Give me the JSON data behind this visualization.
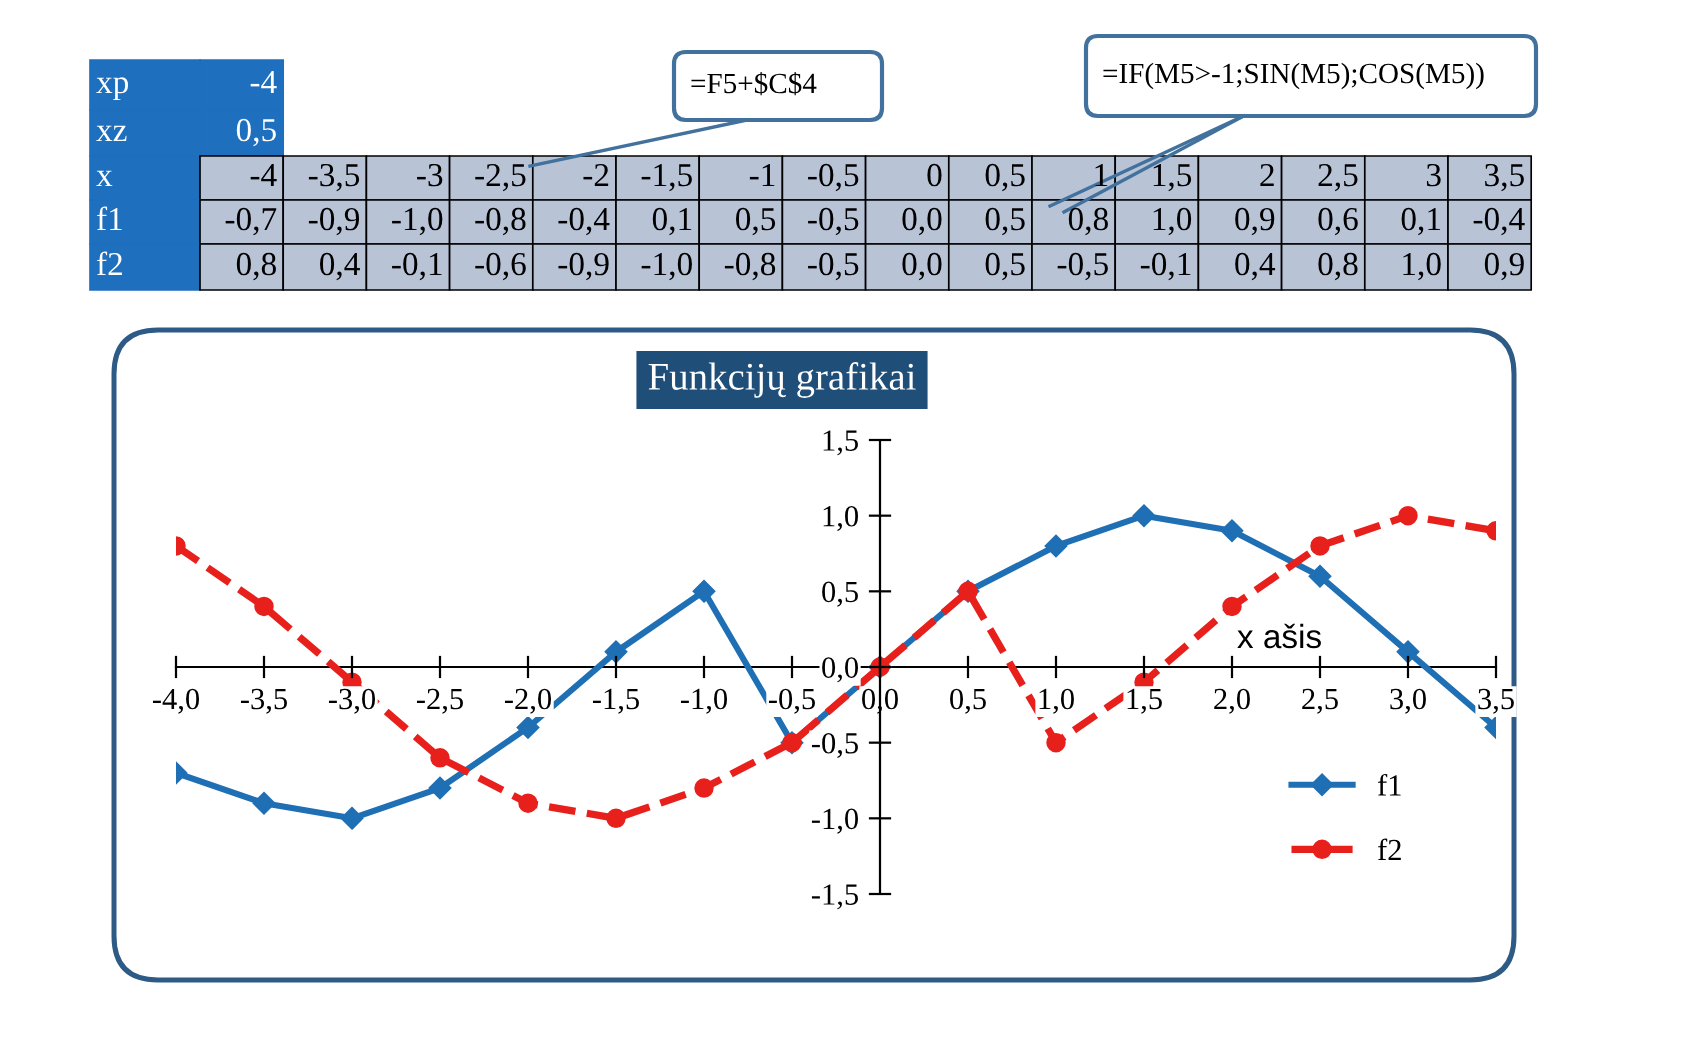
{
  "chart_data": {
    "type": "line",
    "title": "Funkcijų grafikai",
    "xlabel": "x ašis",
    "annotations": [
      "xp",
      "-4",
      "xz",
      "0,5",
      "x",
      "=F5+$C$4",
      "=IF(M5>-1;SIN(M5);COS(M5))",
      "-4",
      "-3,5",
      "-3",
      "-2,5",
      "-2",
      "-1,5",
      "-1",
      "-0,5",
      "0",
      "0,5",
      "1",
      "1,5",
      "2",
      "2,5",
      "3",
      "3,5",
      "f1",
      "-0,7",
      "-0,9",
      "-1,0",
      "-0,8",
      "-0,4",
      "0,1",
      "0,5",
      "-0,5",
      "0,0",
      "0,5",
      "0,8",
      "1,0",
      "0,9",
      "0,6",
      "0,1",
      "-0,4",
      "f2",
      "0,8",
      "0,4",
      "-0,1",
      "-0,6",
      "-0,9",
      "-1,0",
      "-0,8",
      "-0,5",
      "0,0",
      "0,5",
      "-0,5",
      "-0,1",
      "0,4",
      "0,8",
      "1,0",
      "0,9"
    ],
    "x": [
      -4,
      -3.5,
      -3,
      -2.5,
      -2,
      -1.5,
      -1,
      -0.5,
      0,
      0.5,
      1,
      1.5,
      2,
      2.5,
      3,
      3.5
    ],
    "series": [
      {
        "name": "f1",
        "color": "#1f6fb5",
        "marker": "diamond",
        "line_style": "solid",
        "values": [
          -0.7,
          -0.9,
          -1.0,
          -0.8,
          -0.4,
          0.1,
          0.5,
          -0.5,
          0.0,
          0.5,
          0.8,
          1.0,
          0.9,
          0.6,
          0.1,
          -0.4
        ]
      },
      {
        "name": "f2",
        "color": "#e8201c",
        "marker": "circle",
        "line_style": "dashed",
        "values": [
          0.8,
          0.4,
          -0.1,
          -0.6,
          -0.9,
          -1.0,
          -0.8,
          -0.5,
          0.0,
          0.5,
          -0.5,
          -0.1,
          0.4,
          0.8,
          1.0,
          0.9
        ]
      }
    ],
    "xlim": [
      -4,
      3.5
    ],
    "xticks": [
      {
        "value": -4,
        "label": "-4,0"
      },
      {
        "value": -3.5,
        "label": "-3,5"
      },
      {
        "value": -3,
        "label": "-3,0"
      },
      {
        "value": -2.5,
        "label": "-2,5"
      },
      {
        "value": -2,
        "label": "-2,0"
      },
      {
        "value": -1.5,
        "label": "-1,5"
      },
      {
        "value": -1,
        "label": "-1,0"
      },
      {
        "value": -0.5,
        "label": "-0,5"
      },
      {
        "value": 0,
        "label": "0,0"
      },
      {
        "value": 0.5,
        "label": "0,5"
      },
      {
        "value": 1,
        "label": "1,0"
      },
      {
        "value": 1.5,
        "label": "1,5"
      },
      {
        "value": 2,
        "label": "2,0"
      },
      {
        "value": 2.5,
        "label": "2,5"
      },
      {
        "value": 3,
        "label": "3,0"
      },
      {
        "value": 3.5,
        "label": "3,5"
      }
    ],
    "ylim": [
      -1.5,
      1.5
    ],
    "yticks": [
      {
        "value": -1.5,
        "label": "-1,5"
      },
      {
        "value": -1,
        "label": "-1,0"
      },
      {
        "value": -0.5,
        "label": "-0,5"
      },
      {
        "value": 0,
        "label": "0,0"
      },
      {
        "value": 0.5,
        "label": "0,5"
      },
      {
        "value": 1,
        "label": "1,0"
      },
      {
        "value": 1.5,
        "label": "1,5"
      }
    ],
    "grid": false,
    "legend": "bottom right"
  }
}
